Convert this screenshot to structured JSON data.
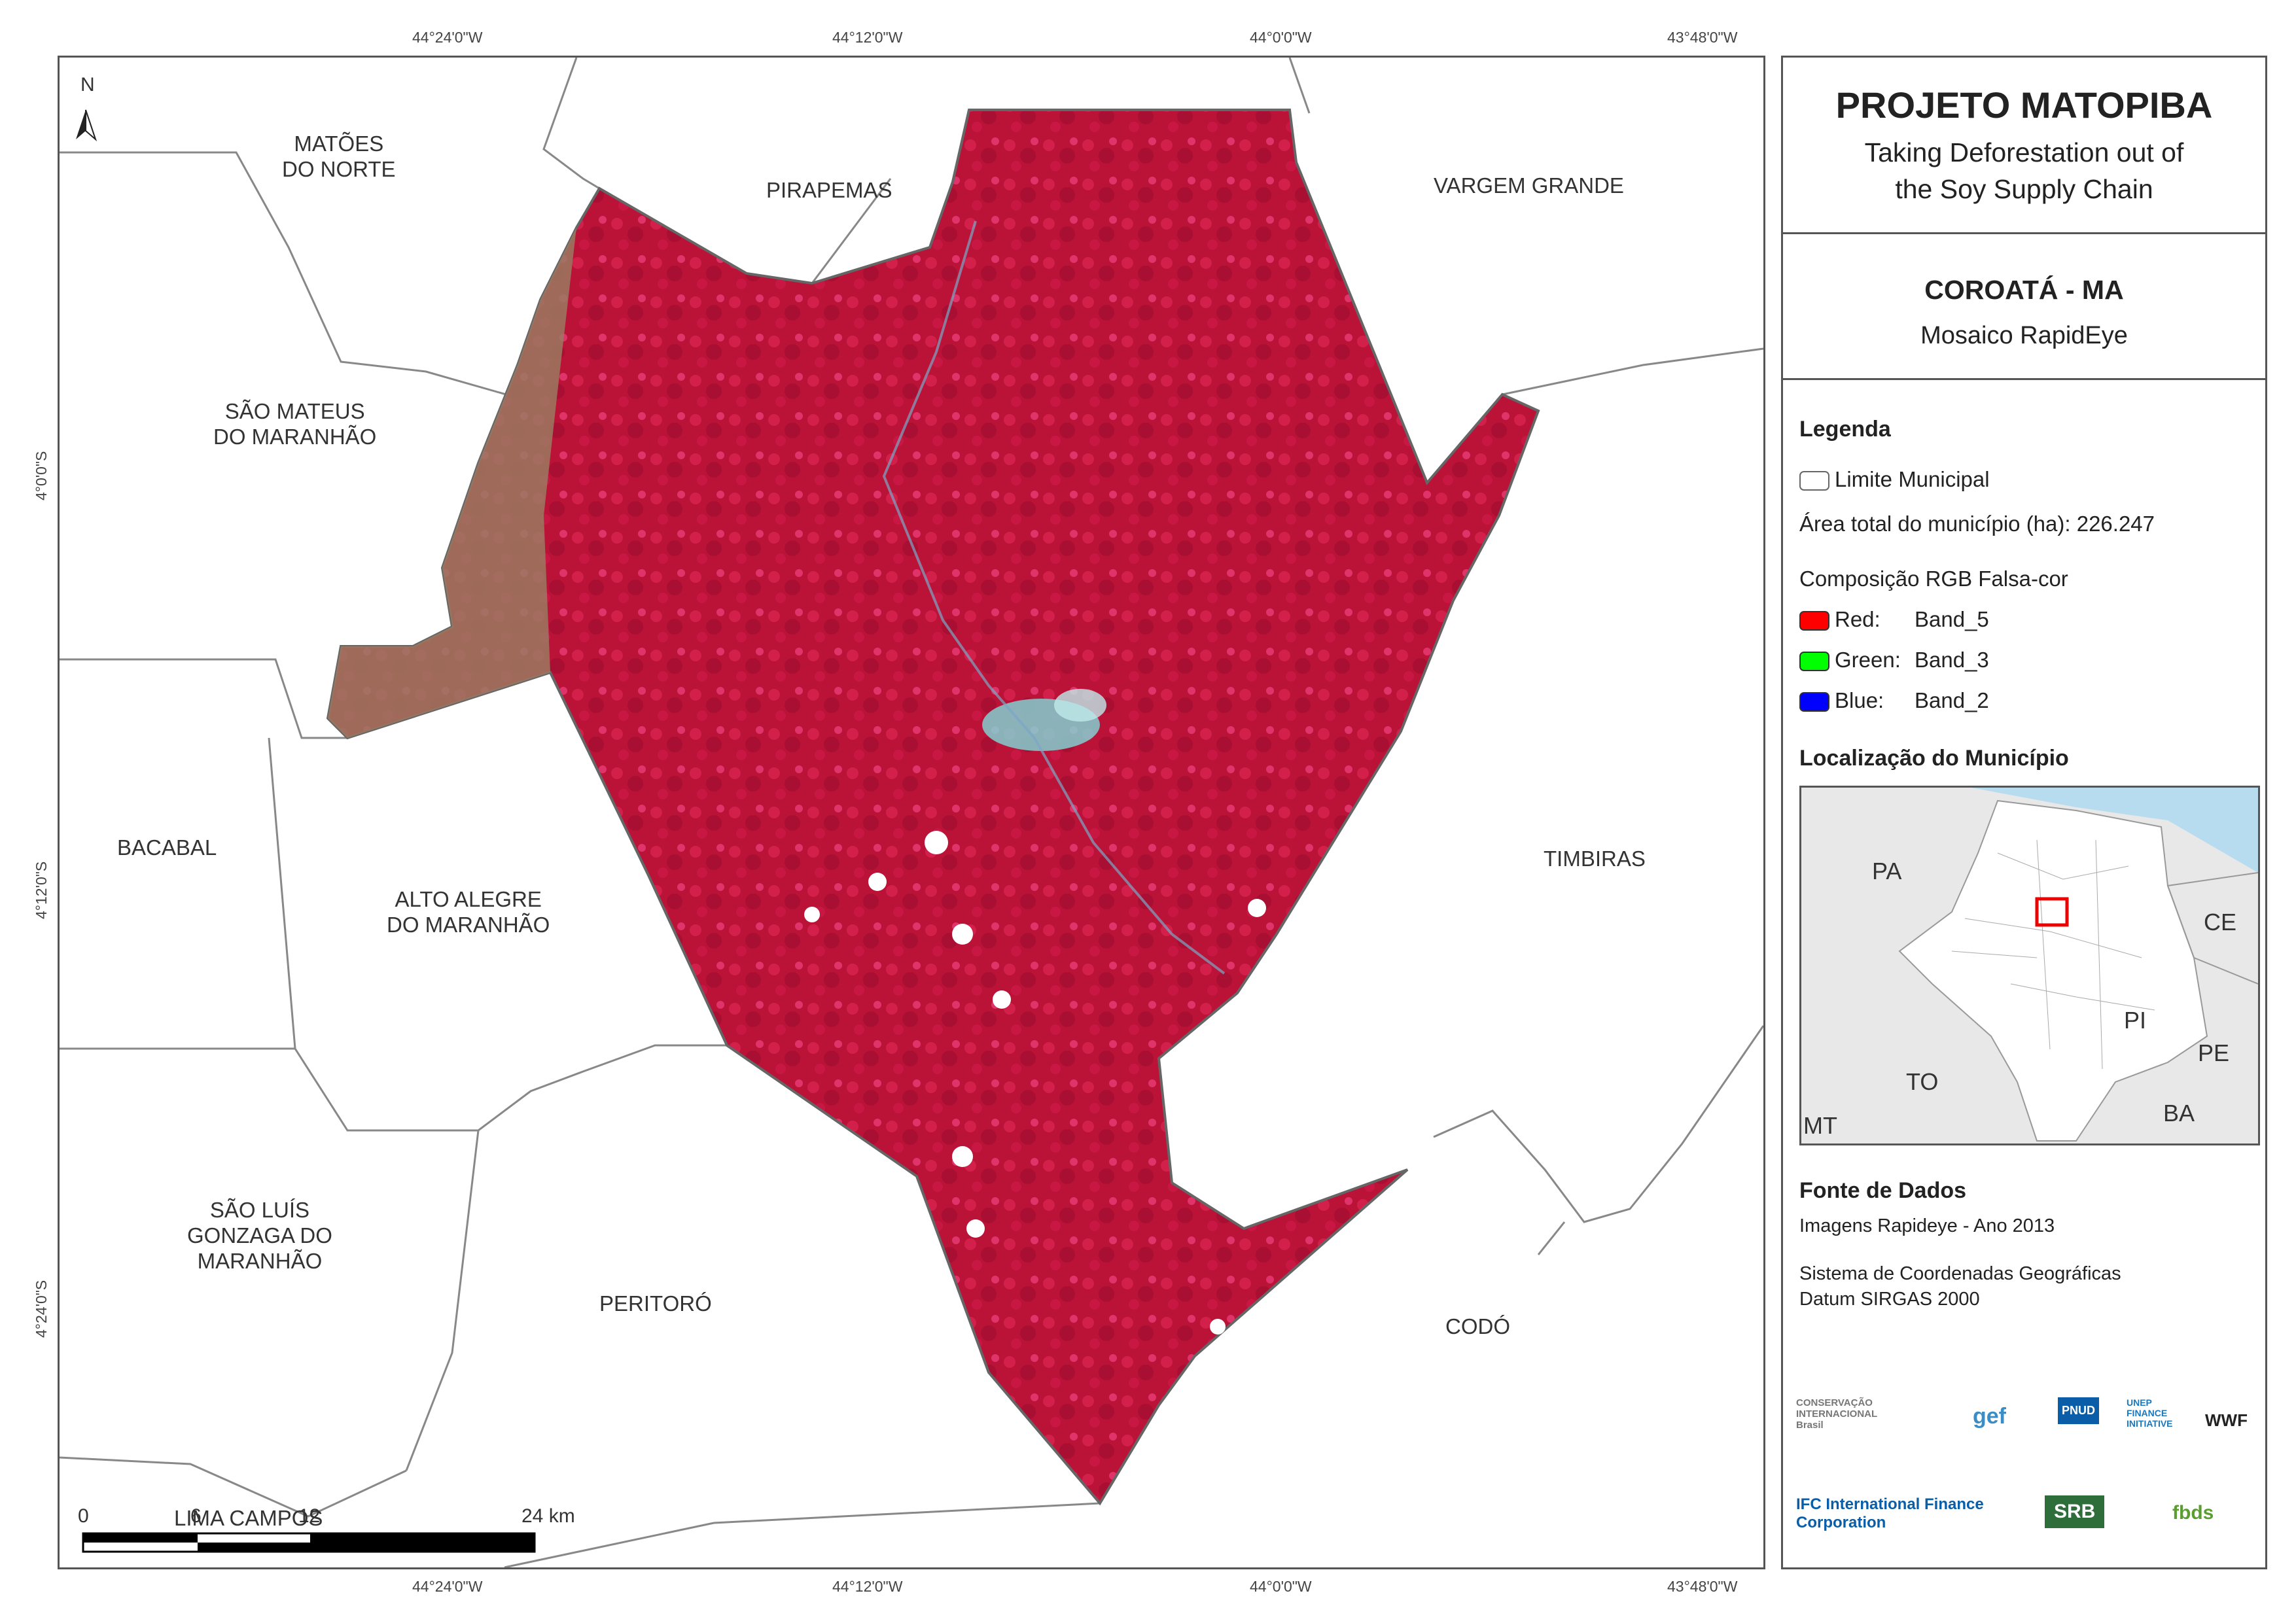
{
  "panel": {
    "title": "PROJETO MATOPIBA",
    "subtitle_line1": "Taking Deforestation out of",
    "subtitle_line2": "the Soy Supply Chain",
    "municipality": "COROATÁ - MA",
    "mosaic": "Mosaico RapidEye",
    "legend_heading": "Legenda",
    "legend_boundary": "Limite Municipal",
    "legend_area": "Área total do município (ha): 226.247",
    "legend_composition": "Composição RGB Falsa-cor",
    "bands": [
      {
        "label": "Red:",
        "band": "Band_5",
        "color": "#ff0000"
      },
      {
        "label": "Green:",
        "band": "Band_3",
        "color": "#00ff00"
      },
      {
        "label": "Blue:",
        "band": "Band_2",
        "color": "#0000ff"
      }
    ],
    "location_heading": "Localização do Município",
    "inset_labels": [
      "PA",
      "CE",
      "PI",
      "PE",
      "TO",
      "BA",
      "MT"
    ],
    "source_heading": "Fonte de Dados",
    "source_images": "Imagens Rapideye - Ano 2013",
    "crs_line1": "Sistema de Coordenadas Geográficas",
    "crs_line2": "Datum SIRGAS 2000",
    "logos": [
      "CONSERVAÇÃO INTERNACIONAL Brasil",
      "gef",
      "PNUD",
      "UNEP FINANCE INITIATIVE",
      "WWF",
      "IFC International Finance Corporation",
      "SRB",
      "fbds"
    ]
  },
  "map": {
    "north_label": "N",
    "coords_top": [
      "44°24'0\"W",
      "44°12'0\"W",
      "44°0'0\"W",
      "43°48'0\"W"
    ],
    "coords_bottom": [
      "44°24'0\"W",
      "44°12'0\"W",
      "44°0'0\"W",
      "43°48'0\"W"
    ],
    "coords_left": [
      "4°0'0\"S",
      "4°12'0\"S",
      "4°24'0\"S"
    ],
    "municipalities": {
      "matoes": [
        "MATÕES",
        "DO NORTE"
      ],
      "pirapemas": "PIRAPEMAS",
      "vargem": "VARGEM GRANDE",
      "saomateus": [
        "SÃO MATEUS",
        "DO MARANHÃO"
      ],
      "bacabal": "BACABAL",
      "altoalegre": [
        "ALTO ALEGRE",
        "DO MARANHÃO"
      ],
      "timbiras": "TIMBIRAS",
      "saoluis": [
        "SÃO LUÍS",
        "GONZAGA DO",
        "MARANHÃO"
      ],
      "peritoro": "PERITORÓ",
      "codo": "CODÓ",
      "limacampos": "LIMA CAMPOS"
    },
    "scale": {
      "ticks": [
        "0",
        "6",
        "12",
        "24 km"
      ]
    },
    "colors": {
      "vegetation": "#c0143c",
      "cleared": "#9b7a62",
      "urban": "#7fd9d9",
      "ocean": "#b7dcf0"
    }
  }
}
